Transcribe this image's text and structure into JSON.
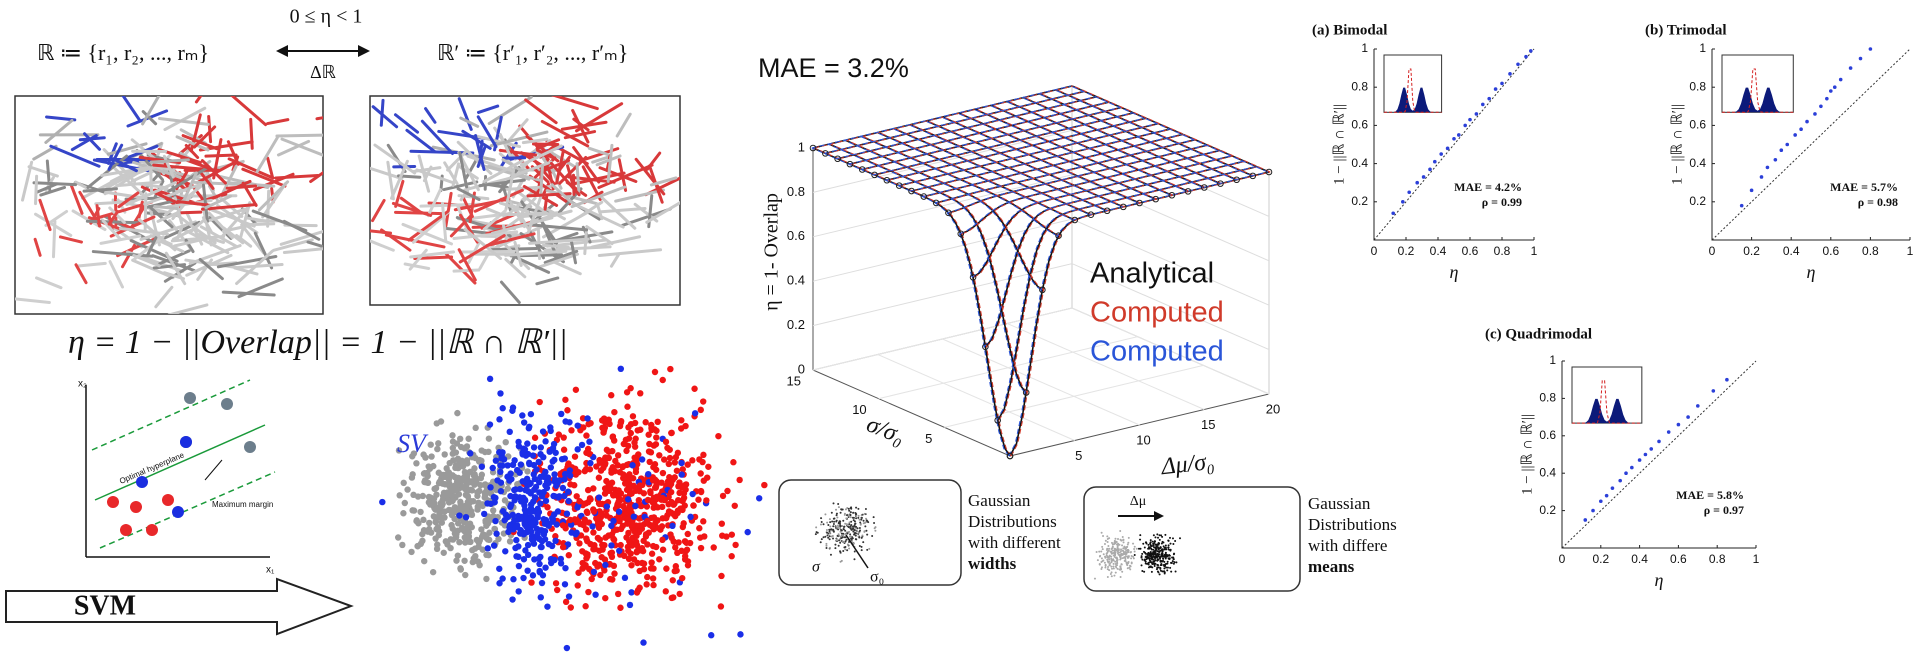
{
  "left": {
    "eta_range": "0 ≤ η < 1",
    "set_r": "ℝ  ≔ {r₁, r₂, ..., rₘ}",
    "delta_r": "Δℝ",
    "set_r_prime": "ℝ′ ≔ {r′₁, r′₂, ..., r′ₘ}",
    "formula": "η = 1 − ||Overlap|| = 1 − ||ℝ ∩ ℝ′||",
    "svm_plot": {
      "y_axis": "x₂",
      "x_axis": "x₁",
      "hyperplane": "Optimal hyperplane",
      "margin": "Maximum margin"
    },
    "svm_arrow": "SVM",
    "sv_label": "SV"
  },
  "insets": [
    {
      "lines": [
        "Gaussian",
        "Distributions",
        "with different"
      ],
      "bold": "widths",
      "sigma": "σ",
      "sigma0": "σ₀"
    },
    {
      "lines": [
        "Gaussian",
        "Distributions",
        "with differe"
      ],
      "bold": "means",
      "delta": "Δμ"
    }
  ],
  "chart_data": [
    {
      "type": "surface",
      "title": "MAE = 3.2%",
      "zlabel": "η = 1- Overlap",
      "ylabel": "σ/σ₀",
      "xlabel": "Δμ/σ₀",
      "xlim": [
        0,
        20
      ],
      "xticks": [
        5,
        10,
        15,
        20
      ],
      "ylim": [
        0,
        15
      ],
      "yticks": [
        5,
        10,
        15
      ],
      "zlim": [
        0,
        1
      ],
      "zticks": [
        0,
        0.2,
        0.4,
        0.6,
        0.8,
        1
      ],
      "grid": true,
      "series": [
        {
          "name": "Analytical",
          "color": "#111111"
        },
        {
          "name": "Computed",
          "color": "#d03a2a"
        },
        {
          "name": "Computed",
          "color": "#2a55d8"
        }
      ]
    },
    {
      "type": "scatter",
      "title": "(a) Bimodal",
      "xlabel": "η",
      "ylabel": "1 − ||ℝ ∩ ℝ′||",
      "annotations": [
        "MAE = 4.2%",
        "ρ = 0.99"
      ],
      "color": "#2b3fd8",
      "xlim": [
        0,
        1
      ],
      "ylim": [
        0,
        1
      ],
      "xticks": [
        0,
        0.2,
        0.4,
        0.6,
        0.8,
        1
      ],
      "yticks": [
        0.2,
        0.4,
        0.6,
        0.8,
        1
      ],
      "x": [
        0.12,
        0.18,
        0.22,
        0.27,
        0.31,
        0.35,
        0.38,
        0.42,
        0.46,
        0.5,
        0.53,
        0.57,
        0.6,
        0.64,
        0.68,
        0.72,
        0.76,
        0.8,
        0.85,
        0.9,
        0.95,
        0.98
      ],
      "values": [
        0.14,
        0.2,
        0.25,
        0.3,
        0.33,
        0.37,
        0.41,
        0.45,
        0.48,
        0.53,
        0.55,
        0.6,
        0.63,
        0.66,
        0.71,
        0.74,
        0.79,
        0.82,
        0.87,
        0.92,
        0.96,
        0.99
      ]
    },
    {
      "type": "scatter",
      "title": "(b) Trimodal",
      "xlabel": "η",
      "ylabel": "1 − ||ℝ ∩ ℝ′||",
      "annotations": [
        "MAE = 5.7%",
        "ρ = 0.98"
      ],
      "color": "#2b3fd8",
      "xlim": [
        0,
        1
      ],
      "ylim": [
        0,
        1
      ],
      "xticks": [
        0,
        0.2,
        0.4,
        0.6,
        0.8,
        1
      ],
      "yticks": [
        0.2,
        0.4,
        0.6,
        0.8,
        1
      ],
      "x": [
        0.15,
        0.2,
        0.25,
        0.28,
        0.32,
        0.35,
        0.38,
        0.42,
        0.45,
        0.48,
        0.52,
        0.55,
        0.58,
        0.6,
        0.62,
        0.65,
        0.7,
        0.75,
        0.8
      ],
      "values": [
        0.18,
        0.26,
        0.33,
        0.38,
        0.42,
        0.47,
        0.5,
        0.55,
        0.58,
        0.62,
        0.66,
        0.7,
        0.74,
        0.78,
        0.8,
        0.84,
        0.9,
        0.95,
        1.0
      ]
    },
    {
      "type": "scatter",
      "title": "(c) Quadrimodal",
      "xlabel": "η",
      "ylabel": "1 − ||ℝ ∩ ℝ′||",
      "annotations": [
        "MAE = 5.8%",
        "ρ = 0.97"
      ],
      "color": "#2b3fd8",
      "xlim": [
        0,
        1
      ],
      "ylim": [
        0,
        1
      ],
      "xticks": [
        0,
        0.2,
        0.4,
        0.6,
        0.8,
        1
      ],
      "yticks": [
        0.2,
        0.4,
        0.6,
        0.8,
        1
      ],
      "x": [
        0.12,
        0.16,
        0.2,
        0.23,
        0.26,
        0.3,
        0.33,
        0.36,
        0.4,
        0.43,
        0.46,
        0.5,
        0.55,
        0.6,
        0.65,
        0.7,
        0.78,
        0.85
      ],
      "values": [
        0.15,
        0.2,
        0.25,
        0.28,
        0.32,
        0.36,
        0.4,
        0.43,
        0.47,
        0.5,
        0.53,
        0.57,
        0.62,
        0.66,
        0.7,
        0.76,
        0.84,
        0.9
      ]
    }
  ]
}
